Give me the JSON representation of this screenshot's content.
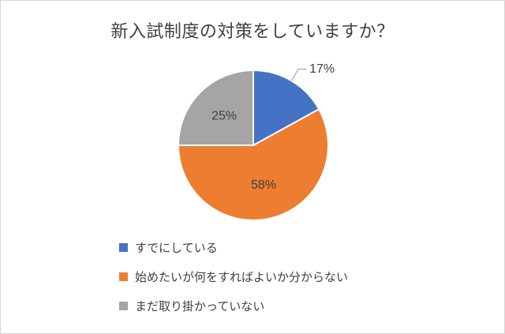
{
  "page": {
    "background": "#ffffff",
    "border_color": "#d6d6d6"
  },
  "chart_data": {
    "type": "pie",
    "title": "新入試制度の対策をしていますか？",
    "start_angle_deg": -90,
    "direction": "clockwise",
    "legend_position": "bottom-left",
    "grid": false,
    "label_color": "#404040",
    "leader_line_color": "#9a9a9a",
    "slice_border_color": "#ffffff",
    "slices": [
      {
        "label": "すでにしている",
        "value": 17,
        "display": "17%",
        "color": "#4472C4",
        "label_position": "outside"
      },
      {
        "label": "始めたいが何をすればよいか分からない",
        "value": 58,
        "display": "58%",
        "color": "#ED7D31",
        "label_position": "inside"
      },
      {
        "label": "まだ取り掛かっていない",
        "value": 25,
        "display": "25%",
        "color": "#A5A5A5",
        "label_position": "inside"
      }
    ]
  }
}
